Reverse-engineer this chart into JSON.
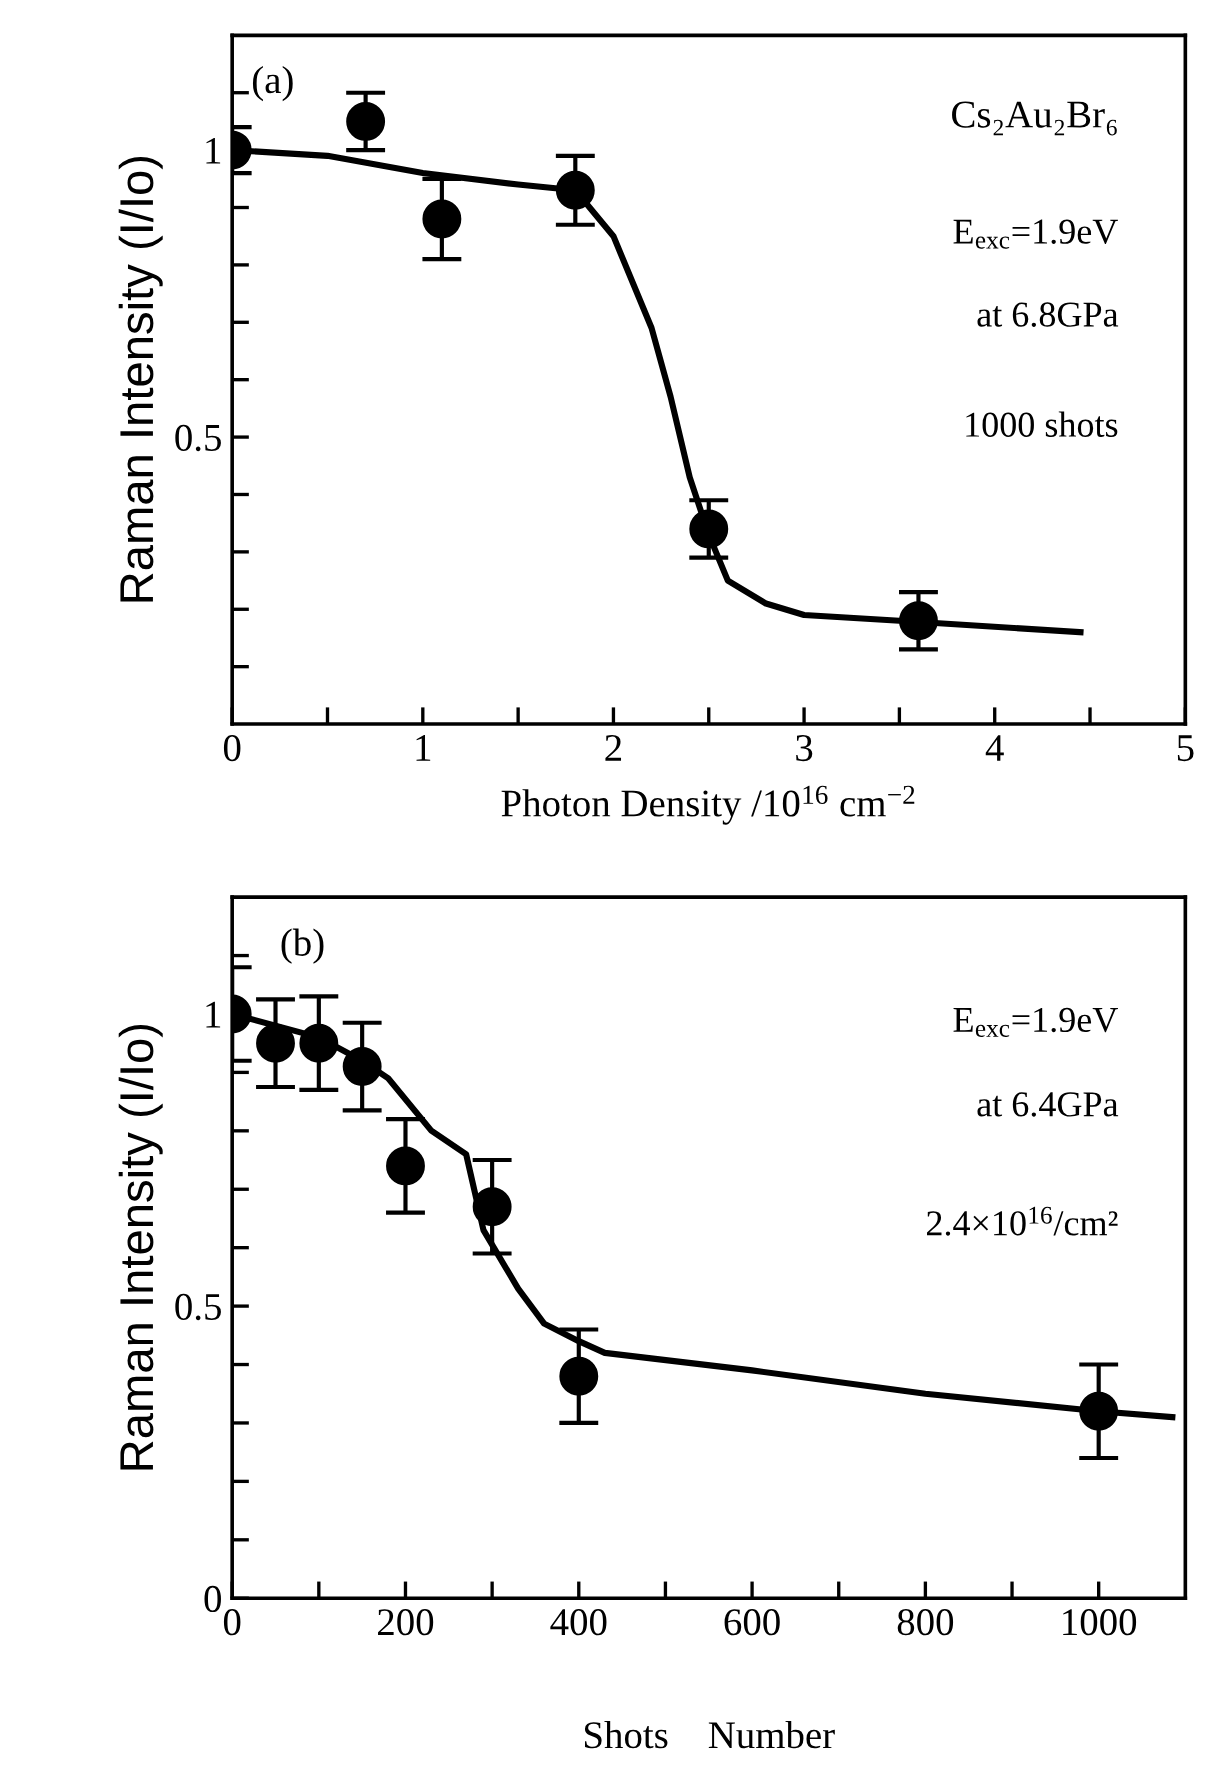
{
  "chart_data": [
    {
      "type": "scatter",
      "xlabel": "Photon Density /10$^{16}$ cm$^{−2}$",
      "ylabel": "Raman Intensity (I/Io)",
      "xlim": [
        0,
        5
      ],
      "xticks": [
        0,
        {
          "value": 0.5,
          "label": null
        },
        1,
        {
          "value": 1.5,
          "label": null
        },
        2,
        {
          "value": 2.5,
          "label": null
        },
        3,
        {
          "value": 3.5,
          "label": null
        },
        4,
        {
          "value": 4.5,
          "label": null
        },
        5
      ],
      "ylim": [
        0,
        1.2
      ],
      "yticks": [
        {
          "value": 0.1,
          "label": null
        },
        {
          "value": 0.2,
          "label": null
        },
        {
          "value": 0.3,
          "label": null
        },
        {
          "value": 0.4,
          "label": null
        },
        {
          "value": 0.5,
          "label": "0.5"
        },
        {
          "value": 0.6,
          "label": null
        },
        {
          "value": 0.7,
          "label": null
        },
        {
          "value": 0.8,
          "label": null
        },
        {
          "value": 0.9,
          "label": null
        },
        1,
        {
          "value": 1.1,
          "label": null
        }
      ],
      "grid": false,
      "legend": false,
      "series": [
        {
          "marker": "circle",
          "color": "#000000",
          "x": [
            0,
            0.7,
            1.1,
            1.8,
            2.5,
            3.6
          ],
          "values": [
            1.0,
            1.05,
            0.88,
            0.93,
            0.34,
            0.18
          ],
          "errors": [
            0.04,
            0.05,
            0.07,
            0.06,
            0.05,
            0.05
          ]
        },
        {
          "type": "line",
          "color": "#000000",
          "x": [
            0,
            0.5,
            1,
            1.5,
            1.8,
            2,
            2.2,
            2.3,
            2.4,
            2.5,
            2.6,
            2.8,
            3,
            3.5,
            4.45
          ],
          "values": [
            1.0,
            0.99,
            0.96,
            0.94,
            0.93,
            0.85,
            0.69,
            0.57,
            0.43,
            0.33,
            0.25,
            0.21,
            0.19,
            0.18,
            0.16
          ]
        }
      ],
      "annotations": [
        "(a)",
        "Cs₂Au₂Br₆",
        "E$_{exc}$=1.9eV",
        "at 6.8GPa",
        "1000 shots"
      ]
    },
    {
      "type": "scatter",
      "xlabel": "Shots    Number",
      "ylabel": "Raman Intensity (I/Io)",
      "xlim": [
        0,
        1100
      ],
      "xticks": [
        0,
        {
          "value": 100,
          "label": null
        },
        200,
        {
          "value": 300,
          "label": null
        },
        400,
        {
          "value": 500,
          "label": null
        },
        600,
        {
          "value": 700,
          "label": null
        },
        800,
        {
          "value": 900,
          "label": null
        },
        1000
      ],
      "ylim": [
        0,
        1.2
      ],
      "yticks": [
        0,
        {
          "value": 0.1,
          "label": null
        },
        {
          "value": 0.2,
          "label": null
        },
        {
          "value": 0.3,
          "label": null
        },
        {
          "value": 0.4,
          "label": null
        },
        {
          "value": 0.5,
          "label": "0.5"
        },
        {
          "value": 0.6,
          "label": null
        },
        {
          "value": 0.7,
          "label": null
        },
        {
          "value": 0.8,
          "label": null
        },
        {
          "value": 0.9,
          "label": null
        },
        1,
        {
          "value": 1.1,
          "label": null
        }
      ],
      "grid": false,
      "legend": false,
      "series": [
        {
          "marker": "circle",
          "color": "#000000",
          "x": [
            0,
            50,
            100,
            150,
            200,
            300,
            400,
            1000
          ],
          "values": [
            1.0,
            0.95,
            0.95,
            0.91,
            0.74,
            0.67,
            0.38,
            0.32
          ],
          "errors": [
            0.08,
            0.075,
            0.08,
            0.075,
            0.08,
            0.08,
            0.08,
            0.08
          ]
        },
        {
          "type": "line",
          "color": "#000000",
          "x": [
            0,
            100,
            150,
            180,
            230,
            270,
            290,
            330,
            360,
            400,
            430,
            600,
            800,
            1000,
            1085
          ],
          "values": [
            1.0,
            0.96,
            0.92,
            0.89,
            0.8,
            0.76,
            0.63,
            0.53,
            0.47,
            0.44,
            0.42,
            0.39,
            0.35,
            0.32,
            0.31
          ]
        }
      ],
      "annotations": [
        "(b)",
        "E$_{exc}$=1.9eV",
        "at 6.4GPa",
        "2.4×10$^{16}$/cm²"
      ]
    }
  ]
}
